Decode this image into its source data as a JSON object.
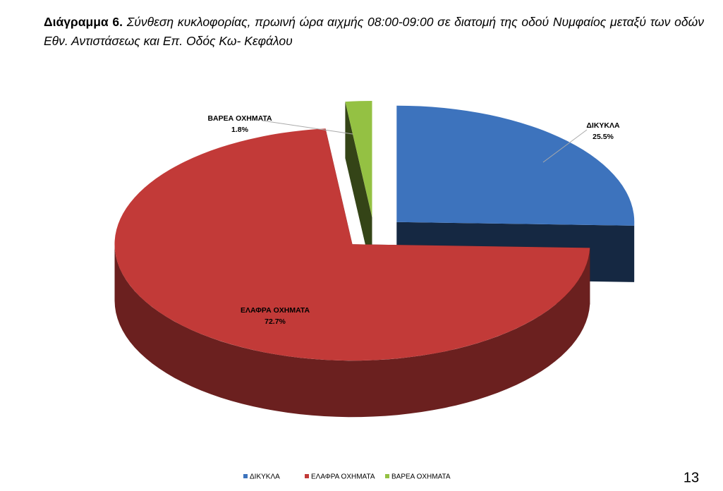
{
  "chart_data": {
    "type": "pie",
    "title_label": "Διάγραμμα 6.",
    "title": "Σύνθεση κυκλοφορίας, πρωινή ώρα αιχμής 08:00-09:00 σε διατομή της οδού Νυμφαίος μεταξύ των οδών Εθν. Αντιστάσεως και Επ. Οδός Κω- Κεφάλου",
    "categories": [
      "ΔΙΚΥΚΛΑ",
      "ΕΛΑΦΡΑ ΟΧΗΜΑΤΑ",
      "ΒΑΡΕΑ ΟΧΗΜΑΤΑ"
    ],
    "values": [
      25.5,
      72.7,
      1.8
    ],
    "value_labels": [
      "25.5%",
      "72.7%",
      "1.8%"
    ],
    "colors": [
      "#3d73bd",
      "#c23a38",
      "#94c143"
    ],
    "legend": "bottom"
  },
  "page_number": "13"
}
